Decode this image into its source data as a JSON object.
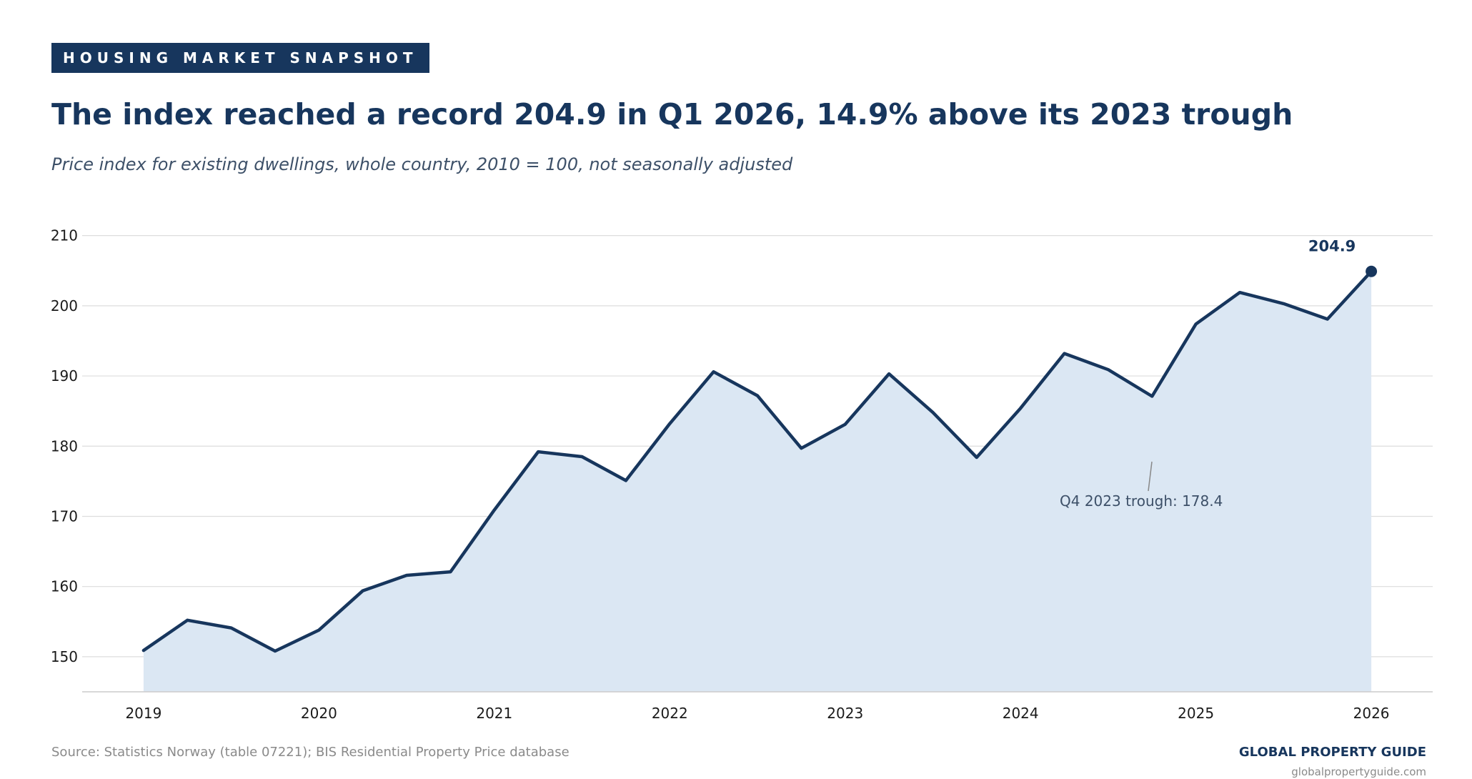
{
  "header": {
    "kicker": "HOUSING MARKET SNAPSHOT",
    "headline": "The index reached a record 204.9 in Q1 2026, 14.9% above its 2023 trough",
    "subtitle": "Price index for existing dwellings, whole country, 2010 = 100, not seasonally adjusted"
  },
  "chart_data": {
    "type": "area",
    "title": "",
    "xlabel": "",
    "ylabel": "",
    "x": [
      2019.0,
      2019.25,
      2019.5,
      2019.75,
      2020.0,
      2020.25,
      2020.5,
      2020.75,
      2021.0,
      2021.25,
      2021.5,
      2021.75,
      2022.0,
      2022.25,
      2022.5,
      2022.75,
      2023.0,
      2023.25,
      2023.5,
      2023.75,
      2024.0,
      2024.25,
      2024.5,
      2024.75,
      2025.0,
      2025.25,
      2025.5,
      2025.75,
      2026.0
    ],
    "series": [
      {
        "values": [
          150.9,
          155.2,
          154.1,
          150.8,
          153.8,
          159.4,
          161.6,
          162.1,
          170.9,
          179.2,
          178.5,
          175.1,
          183.2,
          190.6,
          187.2,
          179.7,
          183.1,
          190.3,
          184.8,
          178.4,
          185.4,
          193.2,
          190.9,
          187.1,
          197.4,
          201.9,
          200.3,
          198.1,
          204.9
        ],
        "color": "#17365d",
        "fill": "#dbe7f3"
      }
    ],
    "xticks": [
      2019,
      2020,
      2021,
      2022,
      2023,
      2024,
      2025,
      2026
    ],
    "xlim": [
      2018.65,
      2026.35
    ],
    "yticks": [
      150,
      160,
      170,
      180,
      190,
      200,
      210
    ],
    "ylim": [
      145,
      212
    ],
    "grid": true,
    "annotations": {
      "last_point_label": "204.9",
      "trough_label": "Q4 2023 trough: 178.4",
      "trough": {
        "x": 2023.75,
        "y": 178.4
      }
    }
  },
  "footer": {
    "source": "Source: Statistics Norway (table 07221); BIS Residential Property Price database",
    "brand": "GLOBAL PROPERTY GUIDE",
    "website": "globalpropertyguide.com"
  },
  "colors": {
    "navy": "#17365d",
    "fill": "#dbe7f3",
    "grid": "#dddddd",
    "muted_text": "#8a8a8a",
    "annotation_text": "#3d5068"
  }
}
